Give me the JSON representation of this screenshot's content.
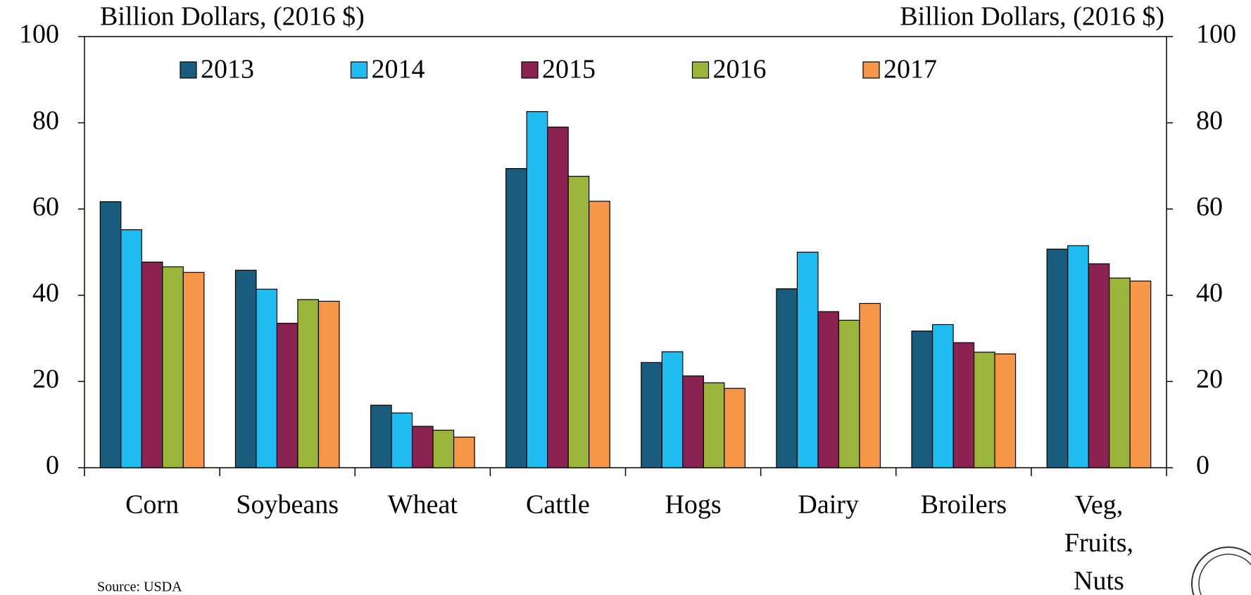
{
  "chart_data": {
    "type": "bar",
    "y_label": "Billion Dollars, (2016 $)",
    "y2_label": "Billion Dollars, (2016 $)",
    "source": "Source: USDA",
    "categories": [
      "Corn",
      "Soybeans",
      "Wheat",
      "Cattle",
      "Hogs",
      "Dairy",
      "Broilers",
      "Veg, Fruits, Nuts"
    ],
    "series": [
      {
        "name": "2013",
        "color": "#1a5c7e",
        "values": [
          61.7,
          45.8,
          14.5,
          69.4,
          24.4,
          41.5,
          31.7,
          50.7
        ]
      },
      {
        "name": "2014",
        "color": "#1ebcf0",
        "values": [
          55.2,
          41.4,
          12.7,
          82.6,
          26.9,
          50.0,
          33.2,
          51.5
        ]
      },
      {
        "name": "2015",
        "color": "#8b2252",
        "values": [
          47.7,
          33.5,
          9.6,
          79.0,
          21.3,
          36.2,
          29.0,
          47.3
        ]
      },
      {
        "name": "2016",
        "color": "#9bb53a",
        "values": [
          46.6,
          39.0,
          8.7,
          67.6,
          19.7,
          34.2,
          26.8,
          44.0
        ]
      },
      {
        "name": "2017",
        "color": "#f79646",
        "values": [
          45.3,
          38.6,
          7.1,
          61.8,
          18.4,
          38.1,
          26.4,
          43.3
        ]
      }
    ],
    "ylim": [
      0,
      100
    ],
    "yticks": [
      0,
      20,
      40,
      60,
      80,
      100
    ],
    "y2lim": [
      0,
      100
    ],
    "y2ticks": [
      0,
      20,
      40,
      60,
      80,
      100
    ],
    "legend": "top"
  }
}
